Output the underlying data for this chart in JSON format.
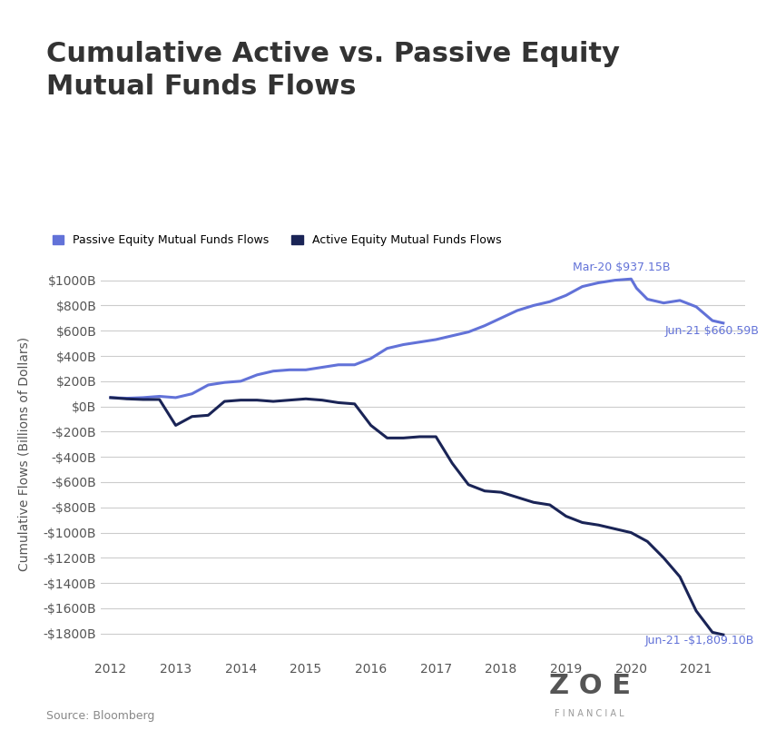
{
  "title": "Cumulative Active vs. Passive Equity\nMutual Funds Flows",
  "ylabel": "Cumulative Flows (Billions of Dollars)",
  "source_text": "Source: Bloomberg",
  "passive_color": "#6272d8",
  "active_color": "#1a2456",
  "annotation_color": "#6272d8",
  "background_color": "#ffffff",
  "legend_passive": "Passive Equity Mutual Funds Flows",
  "legend_active": "Active Equity Mutual Funds Flows",
  "passive_annotation_label": "Mar-20 $937.15B",
  "active_annotation_label": "Jun-21 -$1,809.10B",
  "passive_end_label": "Jun-21 $660.59B",
  "ylim": [
    -1950,
    1200
  ],
  "yticks": [
    -1800,
    -1600,
    -1400,
    -1200,
    -1000,
    -800,
    -600,
    -400,
    -200,
    0,
    200,
    400,
    600,
    800,
    1000
  ],
  "passive_x": [
    2012.0,
    2012.25,
    2012.5,
    2012.75,
    2013.0,
    2013.25,
    2013.5,
    2013.75,
    2014.0,
    2014.25,
    2014.5,
    2014.75,
    2015.0,
    2015.25,
    2015.5,
    2015.75,
    2016.0,
    2016.25,
    2016.5,
    2016.75,
    2017.0,
    2017.25,
    2017.5,
    2017.75,
    2018.0,
    2018.25,
    2018.5,
    2018.75,
    2019.0,
    2019.25,
    2019.5,
    2019.75,
    2020.0,
    2020.083,
    2020.25,
    2020.5,
    2020.75,
    2021.0,
    2021.25,
    2021.416
  ],
  "passive_y": [
    70,
    65,
    70,
    80,
    70,
    100,
    170,
    190,
    200,
    250,
    280,
    290,
    290,
    310,
    330,
    330,
    380,
    460,
    490,
    510,
    530,
    560,
    590,
    640,
    700,
    760,
    800,
    830,
    880,
    950,
    980,
    1000,
    1010,
    937.15,
    850,
    820,
    840,
    790,
    680,
    660.59
  ],
  "active_x": [
    2012.0,
    2012.25,
    2012.5,
    2012.75,
    2013.0,
    2013.25,
    2013.5,
    2013.75,
    2014.0,
    2014.25,
    2014.5,
    2014.75,
    2015.0,
    2015.25,
    2015.5,
    2015.75,
    2016.0,
    2016.25,
    2016.5,
    2016.75,
    2017.0,
    2017.25,
    2017.5,
    2017.75,
    2018.0,
    2018.25,
    2018.5,
    2018.75,
    2019.0,
    2019.25,
    2019.5,
    2019.75,
    2020.0,
    2020.25,
    2020.5,
    2020.75,
    2021.0,
    2021.25,
    2021.416
  ],
  "active_y": [
    70,
    60,
    55,
    55,
    -150,
    -80,
    -70,
    40,
    50,
    50,
    40,
    50,
    60,
    50,
    30,
    20,
    -150,
    -250,
    -250,
    -240,
    -240,
    -450,
    -620,
    -670,
    -680,
    -720,
    -760,
    -780,
    -870,
    -920,
    -940,
    -970,
    -1000,
    -1070,
    -1200,
    -1350,
    -1620,
    -1790,
    -1809.1
  ]
}
